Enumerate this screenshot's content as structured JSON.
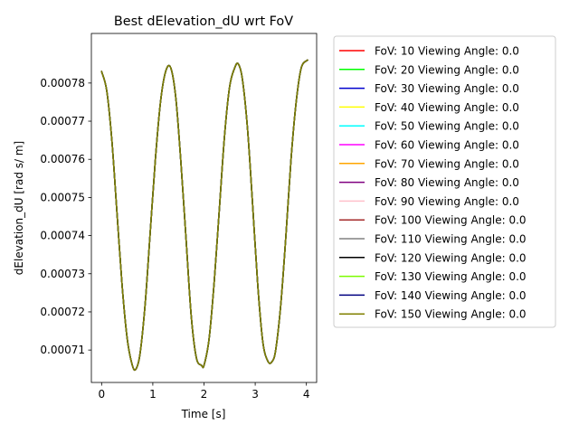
{
  "chart_data": {
    "type": "line",
    "title": "Best dElevation_dU wrt FoV",
    "xlabel": "Time [s]",
    "ylabel": "dElevation_dU [rad s/ m]",
    "xlim": [
      -0.2,
      4.2
    ],
    "ylim": [
      0.0007015,
      0.000793
    ],
    "xticks": [
      0,
      1,
      2,
      3,
      4
    ],
    "xtick_labels": [
      "0",
      "1",
      "2",
      "3",
      "4"
    ],
    "yticks": [
      0.00071,
      0.00072,
      0.00073,
      0.00074,
      0.00075,
      0.00076,
      0.00077,
      0.00078
    ],
    "ytick_labels": [
      "0.00071",
      "0.00072",
      "0.00073",
      "0.00074",
      "0.00075",
      "0.00076",
      "0.00077",
      "0.00078"
    ],
    "grid": false,
    "legend_position": "outside-right",
    "x": [
      0.0,
      0.1,
      0.2,
      0.3,
      0.4,
      0.5,
      0.6,
      0.67,
      0.75,
      0.85,
      0.95,
      1.05,
      1.15,
      1.25,
      1.35,
      1.45,
      1.55,
      1.65,
      1.75,
      1.85,
      1.95,
      2.0,
      2.1,
      2.2,
      2.3,
      2.4,
      2.5,
      2.6,
      2.67,
      2.75,
      2.85,
      2.95,
      3.05,
      3.15,
      3.25,
      3.33,
      3.4,
      3.5,
      3.6,
      3.7,
      3.8,
      3.9,
      4.02
    ],
    "y": [
      0.000783,
      0.000778,
      0.000765,
      0.000746,
      0.000727,
      0.000713,
      0.000706,
      0.000705,
      0.000709,
      0.000722,
      0.000741,
      0.00076,
      0.000775,
      0.000783,
      0.000784,
      0.000776,
      0.000759,
      0.000739,
      0.000719,
      0.000708,
      0.000706,
      0.000706,
      0.000713,
      0.000728,
      0.000747,
      0.000766,
      0.000779,
      0.000784,
      0.000785,
      0.000781,
      0.000768,
      0.000748,
      0.000727,
      0.000712,
      0.000707,
      0.000707,
      0.00071,
      0.000722,
      0.00074,
      0.00076,
      0.000775,
      0.000784,
      0.000786
    ],
    "series": [
      {
        "name": "FoV: 10 Viewing Angle: 0.0",
        "color": "#ff0000"
      },
      {
        "name": "FoV: 20 Viewing Angle: 0.0",
        "color": "#00ff00"
      },
      {
        "name": "FoV: 30 Viewing Angle: 0.0",
        "color": "#0000cd"
      },
      {
        "name": "FoV: 40 Viewing Angle: 0.0",
        "color": "#ffff00"
      },
      {
        "name": "FoV: 50 Viewing Angle: 0.0",
        "color": "#00ffff"
      },
      {
        "name": "FoV: 60 Viewing Angle: 0.0",
        "color": "#ff00ff"
      },
      {
        "name": "FoV: 70 Viewing Angle: 0.0",
        "color": "#ffa500"
      },
      {
        "name": "FoV: 80 Viewing Angle: 0.0",
        "color": "#800080"
      },
      {
        "name": "FoV: 90 Viewing Angle: 0.0",
        "color": "#ffc0cb"
      },
      {
        "name": "FoV: 100 Viewing Angle: 0.0",
        "color": "#a52a2a"
      },
      {
        "name": "FoV: 110 Viewing Angle: 0.0",
        "color": "#808080"
      },
      {
        "name": "FoV: 120 Viewing Angle: 0.0",
        "color": "#000000"
      },
      {
        "name": "FoV: 130 Viewing Angle: 0.0",
        "color": "#7cfc00"
      },
      {
        "name": "FoV: 140 Viewing Angle: 0.0",
        "color": "#000080"
      },
      {
        "name": "FoV: 150 Viewing Angle: 0.0",
        "color": "#808000"
      }
    ]
  }
}
